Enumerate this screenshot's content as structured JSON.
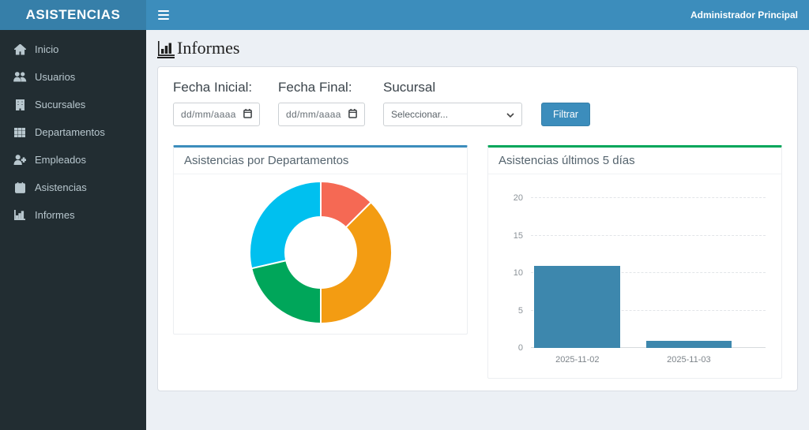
{
  "app": {
    "brand": "ASISTENCIAS",
    "user_label": "Administrador Principal"
  },
  "sidebar": {
    "items": [
      {
        "icon": "home-icon",
        "label": "Inicio"
      },
      {
        "icon": "users-icon",
        "label": "Usuarios"
      },
      {
        "icon": "building-icon",
        "label": "Sucursales"
      },
      {
        "icon": "grid-icon",
        "label": "Departamentos"
      },
      {
        "icon": "user-plus-icon",
        "label": "Empleados"
      },
      {
        "icon": "calendar-check-icon",
        "label": "Asistencias"
      },
      {
        "icon": "bar-chart-icon",
        "label": "Informes"
      }
    ]
  },
  "page": {
    "title": "Informes"
  },
  "filters": {
    "fecha_inicial": {
      "label": "Fecha Inicial:",
      "placeholder": "dd/mm/aaaa"
    },
    "fecha_final": {
      "label": "Fecha Final:",
      "placeholder": "dd/mm/aaaa"
    },
    "sucursal": {
      "label": "Sucursal",
      "selected": "Seleccionar..."
    },
    "filtrar_label": "Filtrar"
  },
  "colors": {
    "navbar": "#3c8dbc",
    "logo_bg": "#367fa9",
    "sidebar_bg": "#222d32",
    "content_bg": "#ecf0f5",
    "accent_blue": "#3c8dbc",
    "accent_green": "#00a65a",
    "bar_fill": "#3d87ad"
  },
  "chart_data": [
    {
      "type": "pie",
      "variant": "donut",
      "title": "Asistencias por Departamentos",
      "values": [
        12.5,
        37.5,
        21.4,
        28.6
      ],
      "values_unit": "percent_of_circle_estimated",
      "colors": [
        "#f56954",
        "#f39c12",
        "#00a65a",
        "#00c0ef"
      ],
      "start_angle_deg": 0,
      "inner_radius_ratio": 0.5,
      "legend": "none"
    },
    {
      "type": "bar",
      "title": "Asistencias últimos 5 días",
      "categories": [
        "2025-11-02",
        "2025-11-03"
      ],
      "values": [
        11,
        1
      ],
      "yticks": [
        0,
        5,
        10,
        15,
        20
      ],
      "ylim": [
        0,
        20
      ],
      "bar_color": "#3d87ad",
      "grid": true,
      "legend": "none"
    }
  ]
}
